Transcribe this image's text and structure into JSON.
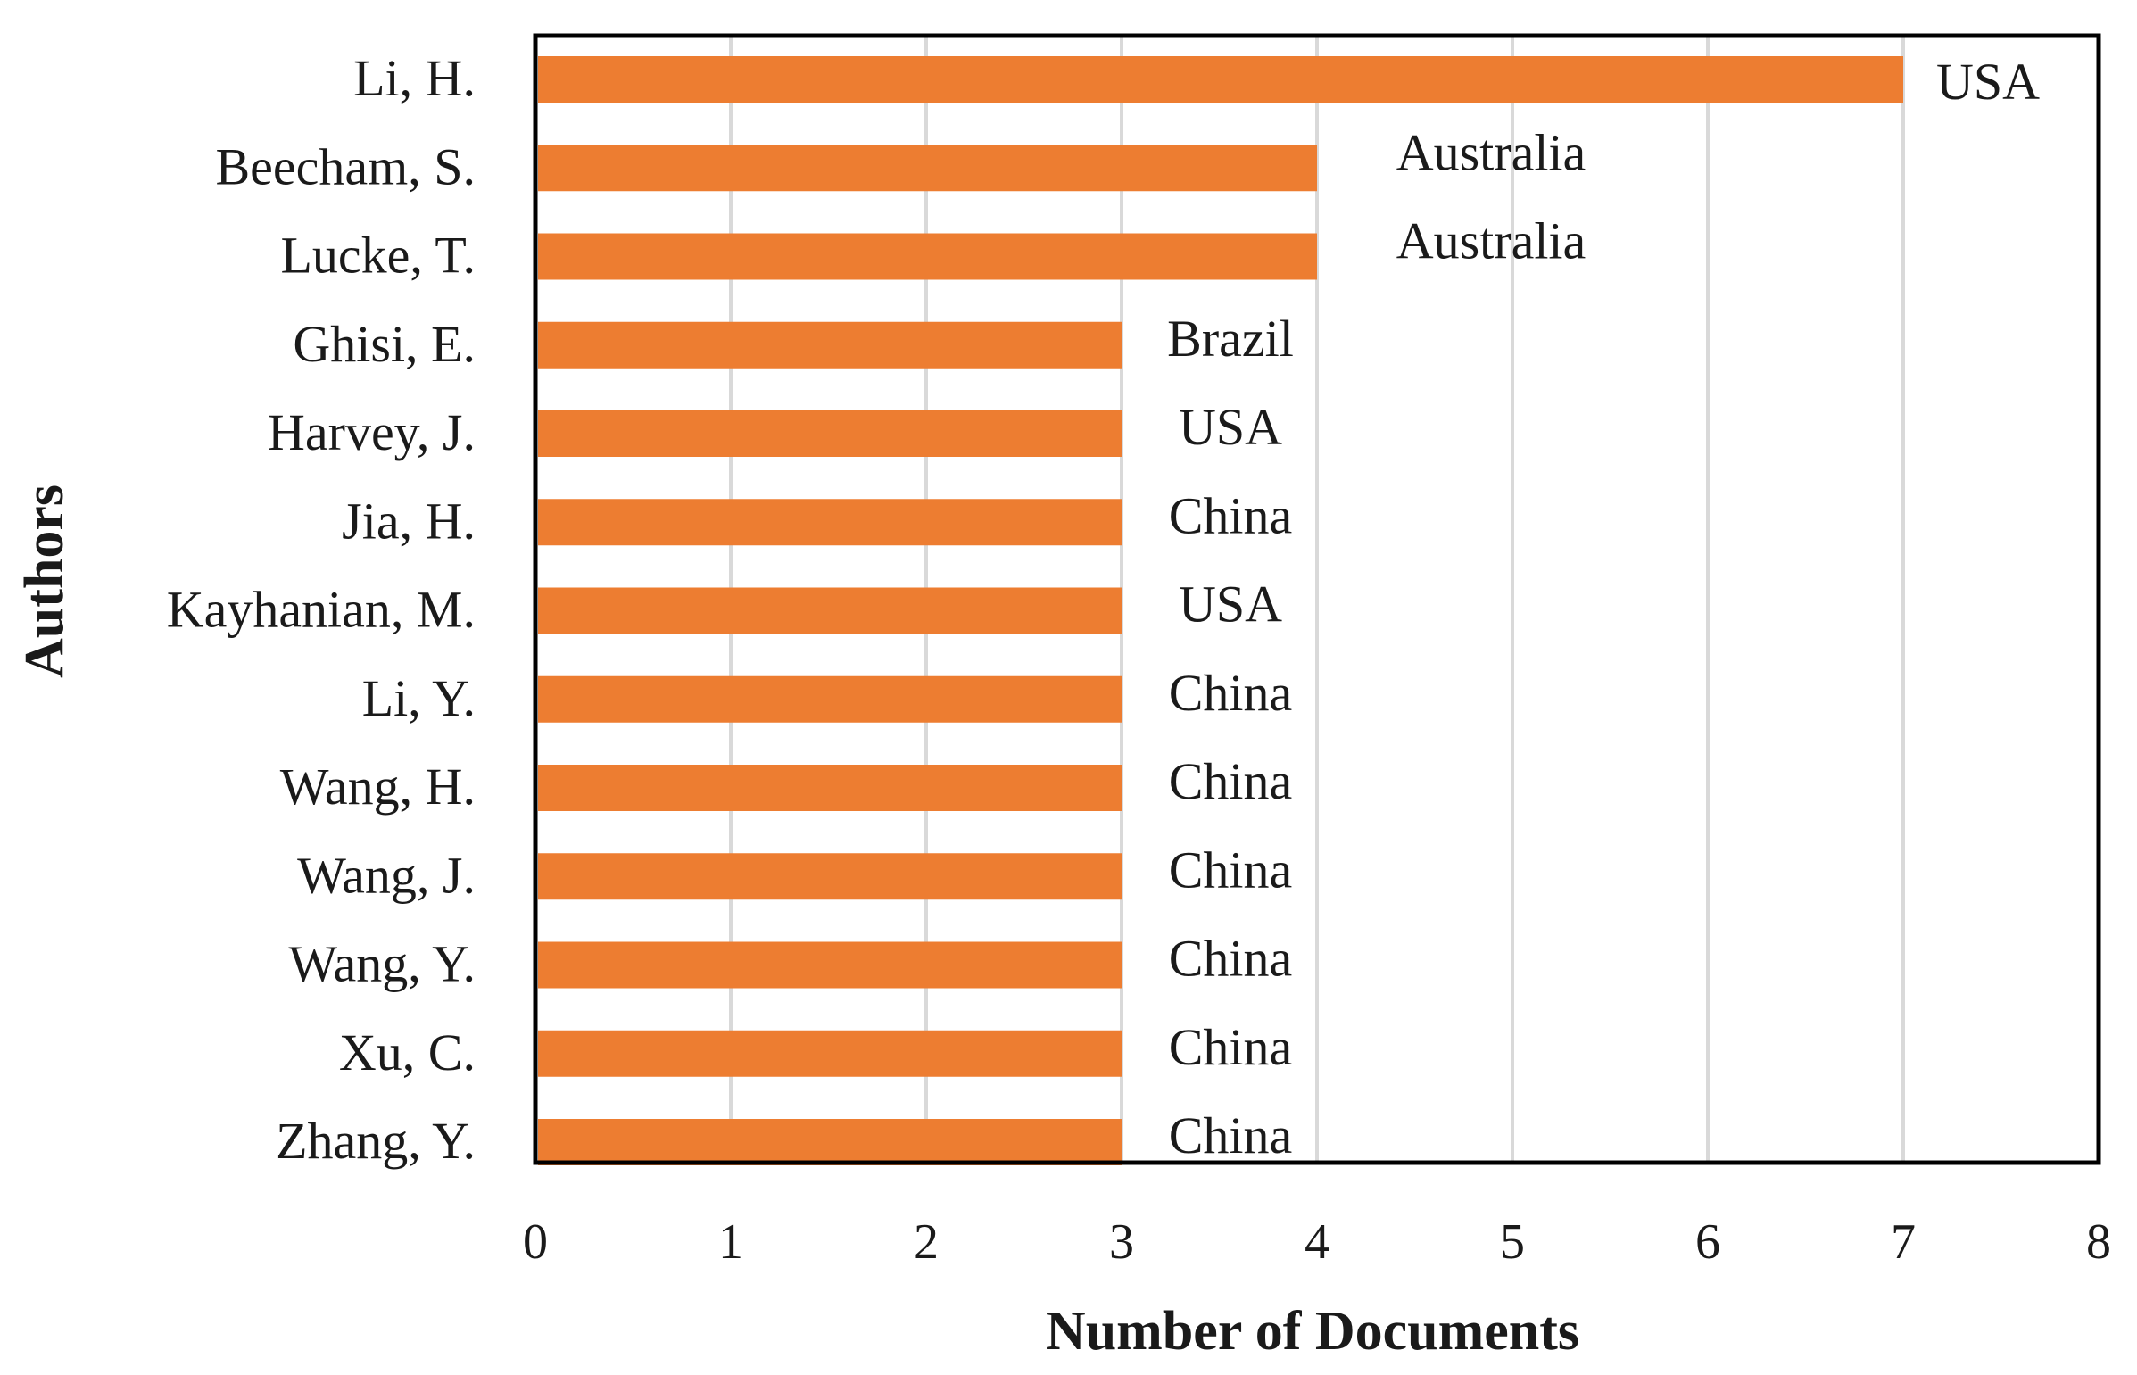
{
  "chart_data": {
    "type": "bar",
    "orientation": "horizontal",
    "title": "",
    "xlabel": "Number of Documents",
    "ylabel": "Authors",
    "categories": [
      "Li, H.",
      "Beecham, S.",
      "Lucke, T.",
      "Ghisi, E.",
      "Harvey, J.",
      "Jia, H.",
      "Kayhanian, M.",
      "Li, Y.",
      "Wang, H.",
      "Wang, J.",
      "Wang, Y.",
      "Xu, C.",
      "Zhang, Y."
    ],
    "values": [
      7,
      4,
      4,
      3,
      3,
      3,
      3,
      3,
      3,
      3,
      3,
      3,
      3
    ],
    "data_labels": [
      "USA",
      "Australia",
      "Australia",
      "Brazil",
      "USA",
      "China",
      "USA",
      "China",
      "China",
      "China",
      "China",
      "China",
      "China"
    ],
    "xlim": [
      0,
      8
    ],
    "xticks": [
      0,
      1,
      2,
      3,
      4,
      5,
      6,
      7,
      8
    ],
    "grid": "vertical",
    "legend": "none",
    "colors": {
      "bar": "#ED7D31",
      "grid": "#D9D9D9",
      "frame": "#000000"
    }
  }
}
